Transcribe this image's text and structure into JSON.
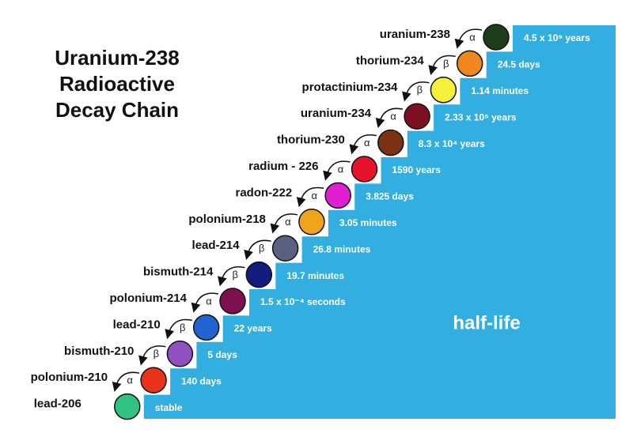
{
  "title": [
    "Uranium-238",
    "Radioactive",
    "Decay Chain"
  ],
  "half_life_label": "half-life",
  "steps": [
    {
      "name": "uranium-238",
      "half_life": "4.5 x 10⁹ years",
      "decay": "α",
      "color": "#1c3f1a"
    },
    {
      "name": "thorium-234",
      "half_life": "24.5 days",
      "decay": "β",
      "color": "#f0861e"
    },
    {
      "name": "protactinium-234",
      "half_life": "1.14 minutes",
      "decay": "β",
      "color": "#f5f03c"
    },
    {
      "name": "uranium-234",
      "half_life": "2.33 x 10⁵ years",
      "decay": "α",
      "color": "#7a1022"
    },
    {
      "name": "thorium-230",
      "half_life": "8.3 x 10⁴ years",
      "decay": "α",
      "color": "#7a3212"
    },
    {
      "name": "radium - 226",
      "half_life": "1590 years",
      "decay": "α",
      "color": "#e8122c"
    },
    {
      "name": "radon-222",
      "half_life": "3.825 days",
      "decay": "α",
      "color": "#e01ed2"
    },
    {
      "name": "polonium-218",
      "half_life": "3.05 minutes",
      "decay": "α",
      "color": "#f0a41e"
    },
    {
      "name": "lead-214",
      "half_life": "26.8 minutes",
      "decay": "β",
      "color": "#596080"
    },
    {
      "name": "bismuth-214",
      "half_life": "19.7 minutes",
      "decay": "β",
      "color": "#111c7e"
    },
    {
      "name": "polonium-214",
      "half_life": "1.5 x 10⁻⁴ seconds",
      "decay": "α",
      "color": "#7e1050"
    },
    {
      "name": "lead-210",
      "half_life": "22 years",
      "decay": "β",
      "color": "#2263d2"
    },
    {
      "name": "bismuth-210",
      "half_life": "5 days",
      "decay": "β",
      "color": "#9150c2"
    },
    {
      "name": "polonium-210",
      "half_life": "140 days",
      "decay": "α",
      "color": "#e8321a"
    },
    {
      "name": "lead-206",
      "half_life": "stable",
      "color": "#2fc283"
    }
  ]
}
